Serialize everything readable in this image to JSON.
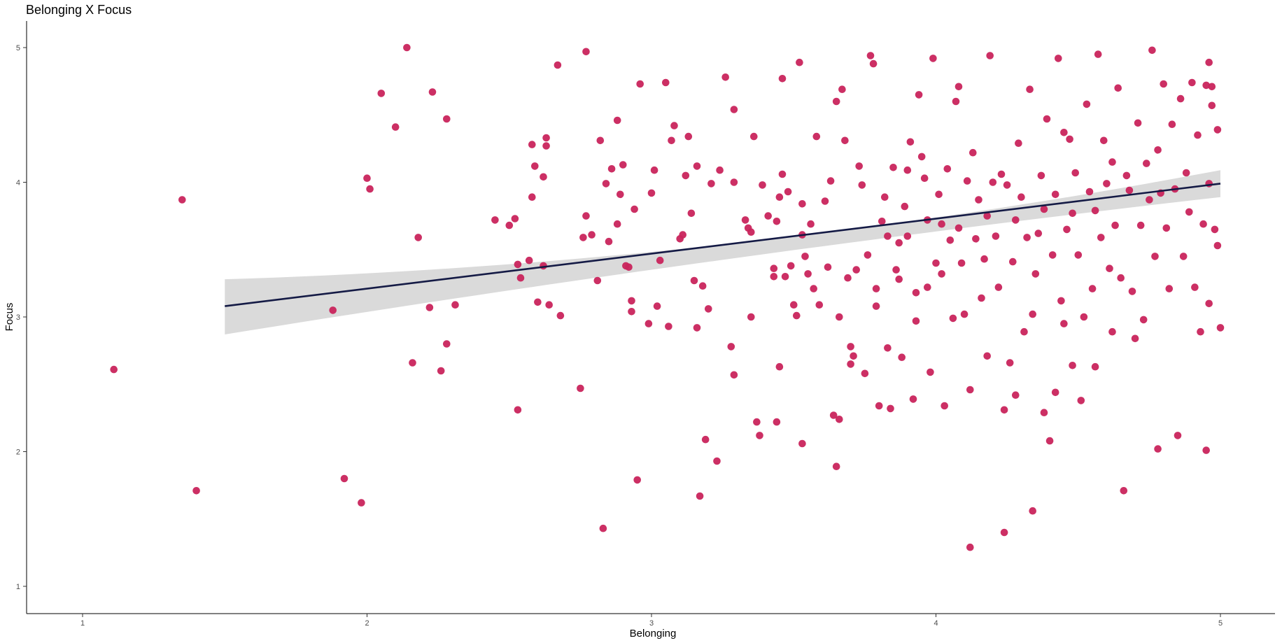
{
  "chart_data": {
    "type": "scatter",
    "title": "Belonging X Focus",
    "xlabel": "Belonging",
    "ylabel": "Focus",
    "xlim": [
      0.8,
      5.2
    ],
    "ylim": [
      0.8,
      5.2
    ],
    "xticks": [
      "1",
      "2",
      "3",
      "4",
      "5"
    ],
    "yticks": [
      "1",
      "2",
      "3",
      "4",
      "5"
    ],
    "grid": false,
    "legend": "none",
    "point_color": "#c9245c",
    "line_color": "#141a45",
    "band_color": "#d6d6d6",
    "regression": {
      "x_start": 1.5,
      "y_start": 3.08,
      "x_end": 5.0,
      "y_end": 3.99,
      "band_start": [
        2.87,
        3.28
      ],
      "band_mid": [
        3.58,
        3.68
      ],
      "band_end": [
        3.89,
        4.09
      ]
    },
    "points": [
      [
        1.11,
        2.61
      ],
      [
        1.35,
        3.87
      ],
      [
        1.4,
        1.71
      ],
      [
        1.88,
        3.05
      ],
      [
        1.92,
        1.8
      ],
      [
        1.98,
        1.62
      ],
      [
        2.0,
        4.03
      ],
      [
        2.01,
        3.95
      ],
      [
        2.05,
        4.66
      ],
      [
        2.1,
        4.41
      ],
      [
        2.14,
        5.0
      ],
      [
        2.16,
        2.66
      ],
      [
        2.18,
        3.59
      ],
      [
        2.22,
        3.07
      ],
      [
        2.23,
        4.67
      ],
      [
        2.26,
        2.6
      ],
      [
        2.28,
        2.8
      ],
      [
        2.28,
        4.47
      ],
      [
        2.31,
        3.09
      ],
      [
        2.45,
        3.72
      ],
      [
        2.5,
        3.68
      ],
      [
        2.52,
        3.73
      ],
      [
        2.53,
        3.39
      ],
      [
        2.54,
        3.29
      ],
      [
        2.53,
        2.31
      ],
      [
        2.57,
        3.42
      ],
      [
        2.58,
        4.28
      ],
      [
        2.58,
        3.89
      ],
      [
        2.59,
        4.12
      ],
      [
        2.6,
        3.11
      ],
      [
        2.62,
        4.04
      ],
      [
        2.62,
        3.38
      ],
      [
        2.63,
        4.33
      ],
      [
        2.63,
        4.27
      ],
      [
        2.64,
        3.09
      ],
      [
        2.67,
        4.87
      ],
      [
        2.68,
        3.01
      ],
      [
        2.75,
        2.47
      ],
      [
        2.76,
        3.59
      ],
      [
        2.77,
        4.97
      ],
      [
        2.77,
        3.75
      ],
      [
        2.79,
        3.61
      ],
      [
        2.81,
        3.27
      ],
      [
        2.82,
        4.31
      ],
      [
        2.83,
        1.43
      ],
      [
        2.84,
        3.99
      ],
      [
        2.85,
        3.56
      ],
      [
        2.86,
        4.1
      ],
      [
        2.88,
        3.69
      ],
      [
        2.88,
        4.46
      ],
      [
        2.89,
        3.91
      ],
      [
        2.9,
        4.13
      ],
      [
        2.91,
        3.38
      ],
      [
        2.92,
        3.37
      ],
      [
        2.93,
        3.12
      ],
      [
        2.93,
        3.04
      ],
      [
        2.94,
        3.8
      ],
      [
        2.95,
        1.79
      ],
      [
        2.96,
        4.73
      ],
      [
        2.99,
        2.95
      ],
      [
        3.0,
        3.92
      ],
      [
        3.01,
        4.09
      ],
      [
        3.02,
        3.08
      ],
      [
        3.03,
        3.42
      ],
      [
        3.05,
        4.74
      ],
      [
        3.06,
        2.93
      ],
      [
        3.08,
        4.42
      ],
      [
        3.07,
        4.31
      ],
      [
        3.1,
        3.58
      ],
      [
        3.11,
        3.61
      ],
      [
        3.12,
        4.05
      ],
      [
        3.13,
        4.34
      ],
      [
        3.14,
        3.77
      ],
      [
        3.15,
        3.27
      ],
      [
        3.16,
        2.92
      ],
      [
        3.16,
        4.12
      ],
      [
        3.17,
        1.67
      ],
      [
        3.18,
        3.23
      ],
      [
        3.19,
        2.09
      ],
      [
        3.2,
        3.06
      ],
      [
        3.21,
        3.99
      ],
      [
        3.23,
        1.93
      ],
      [
        3.24,
        4.09
      ],
      [
        3.26,
        4.78
      ],
      [
        3.28,
        2.78
      ],
      [
        3.29,
        2.57
      ],
      [
        3.29,
        4.54
      ],
      [
        3.29,
        4.0
      ],
      [
        3.33,
        3.72
      ],
      [
        3.34,
        3.66
      ],
      [
        3.35,
        3.63
      ],
      [
        3.35,
        3.0
      ],
      [
        3.36,
        4.34
      ],
      [
        3.37,
        2.22
      ],
      [
        3.38,
        2.12
      ],
      [
        3.39,
        3.98
      ],
      [
        3.41,
        3.75
      ],
      [
        3.43,
        3.36
      ],
      [
        3.43,
        3.3
      ],
      [
        3.44,
        2.22
      ],
      [
        3.44,
        3.71
      ],
      [
        3.45,
        3.89
      ],
      [
        3.45,
        2.63
      ],
      [
        3.46,
        4.77
      ],
      [
        3.46,
        4.06
      ],
      [
        3.47,
        3.3
      ],
      [
        3.48,
        3.93
      ],
      [
        3.49,
        3.38
      ],
      [
        3.5,
        3.09
      ],
      [
        3.51,
        3.01
      ],
      [
        3.52,
        4.89
      ],
      [
        3.53,
        2.06
      ],
      [
        3.53,
        3.84
      ],
      [
        3.53,
        3.61
      ],
      [
        3.54,
        3.45
      ],
      [
        3.55,
        3.32
      ],
      [
        3.56,
        3.69
      ],
      [
        3.57,
        3.21
      ],
      [
        3.58,
        4.34
      ],
      [
        3.59,
        3.09
      ],
      [
        3.61,
        3.86
      ],
      [
        3.62,
        3.37
      ],
      [
        3.63,
        4.01
      ],
      [
        3.64,
        2.27
      ],
      [
        3.65,
        4.6
      ],
      [
        3.65,
        1.89
      ],
      [
        3.66,
        2.24
      ],
      [
        3.66,
        3.0
      ],
      [
        3.67,
        4.69
      ],
      [
        3.68,
        4.31
      ],
      [
        3.69,
        3.29
      ],
      [
        3.7,
        2.78
      ],
      [
        3.7,
        2.65
      ],
      [
        3.71,
        2.71
      ],
      [
        3.72,
        3.35
      ],
      [
        3.73,
        4.12
      ],
      [
        3.74,
        3.98
      ],
      [
        3.75,
        2.58
      ],
      [
        3.76,
        3.46
      ],
      [
        3.77,
        4.94
      ],
      [
        3.78,
        4.88
      ],
      [
        3.79,
        3.21
      ],
      [
        3.79,
        3.08
      ],
      [
        3.8,
        2.34
      ],
      [
        3.81,
        3.71
      ],
      [
        3.82,
        3.89
      ],
      [
        3.83,
        3.6
      ],
      [
        3.83,
        2.77
      ],
      [
        3.84,
        2.32
      ],
      [
        3.85,
        4.11
      ],
      [
        3.86,
        3.35
      ],
      [
        3.87,
        3.55
      ],
      [
        3.87,
        3.28
      ],
      [
        3.88,
        2.7
      ],
      [
        3.89,
        3.82
      ],
      [
        3.9,
        4.09
      ],
      [
        3.9,
        3.6
      ],
      [
        3.91,
        4.3
      ],
      [
        3.92,
        2.39
      ],
      [
        3.93,
        3.18
      ],
      [
        3.93,
        2.97
      ],
      [
        3.94,
        4.65
      ],
      [
        3.95,
        4.19
      ],
      [
        3.96,
        4.03
      ],
      [
        3.97,
        3.72
      ],
      [
        3.97,
        3.22
      ],
      [
        3.98,
        2.59
      ],
      [
        3.99,
        4.92
      ],
      [
        4.0,
        3.4
      ],
      [
        4.01,
        3.91
      ],
      [
        4.02,
        3.69
      ],
      [
        4.02,
        3.32
      ],
      [
        4.03,
        2.34
      ],
      [
        4.04,
        4.1
      ],
      [
        4.05,
        3.57
      ],
      [
        4.06,
        2.99
      ],
      [
        4.07,
        4.6
      ],
      [
        4.08,
        4.71
      ],
      [
        4.08,
        3.66
      ],
      [
        4.09,
        3.4
      ],
      [
        4.1,
        3.02
      ],
      [
        4.11,
        4.01
      ],
      [
        4.12,
        1.29
      ],
      [
        4.12,
        2.46
      ],
      [
        4.13,
        4.22
      ],
      [
        4.14,
        3.58
      ],
      [
        4.15,
        3.87
      ],
      [
        4.16,
        3.14
      ],
      [
        4.17,
        3.43
      ],
      [
        4.18,
        2.71
      ],
      [
        4.18,
        3.75
      ],
      [
        4.19,
        4.94
      ],
      [
        4.2,
        4.0
      ],
      [
        4.21,
        3.6
      ],
      [
        4.22,
        3.22
      ],
      [
        4.23,
        4.06
      ],
      [
        4.24,
        1.4
      ],
      [
        4.24,
        2.31
      ],
      [
        4.25,
        3.98
      ],
      [
        4.26,
        2.66
      ],
      [
        4.27,
        3.41
      ],
      [
        4.28,
        2.42
      ],
      [
        4.28,
        3.72
      ],
      [
        4.29,
        4.29
      ],
      [
        4.3,
        3.89
      ],
      [
        4.31,
        2.89
      ],
      [
        4.32,
        3.59
      ],
      [
        4.33,
        4.69
      ],
      [
        4.34,
        3.02
      ],
      [
        4.34,
        1.56
      ],
      [
        4.35,
        3.32
      ],
      [
        4.36,
        3.62
      ],
      [
        4.37,
        4.05
      ],
      [
        4.38,
        2.29
      ],
      [
        4.38,
        3.8
      ],
      [
        4.39,
        4.47
      ],
      [
        4.4,
        2.08
      ],
      [
        4.41,
        3.46
      ],
      [
        4.42,
        2.44
      ],
      [
        4.42,
        3.91
      ],
      [
        4.43,
        4.92
      ],
      [
        4.44,
        3.12
      ],
      [
        4.45,
        4.37
      ],
      [
        4.45,
        2.95
      ],
      [
        4.46,
        3.65
      ],
      [
        4.47,
        4.32
      ],
      [
        4.48,
        2.64
      ],
      [
        4.48,
        3.77
      ],
      [
        4.49,
        4.07
      ],
      [
        4.5,
        3.46
      ],
      [
        4.51,
        2.38
      ],
      [
        4.52,
        3.0
      ],
      [
        4.53,
        4.58
      ],
      [
        4.54,
        3.93
      ],
      [
        4.55,
        3.21
      ],
      [
        4.56,
        2.63
      ],
      [
        4.56,
        3.79
      ],
      [
        4.57,
        4.95
      ],
      [
        4.58,
        3.59
      ],
      [
        4.59,
        4.31
      ],
      [
        4.6,
        3.99
      ],
      [
        4.61,
        3.36
      ],
      [
        4.62,
        2.89
      ],
      [
        4.62,
        4.15
      ],
      [
        4.63,
        3.68
      ],
      [
        4.64,
        4.7
      ],
      [
        4.65,
        3.29
      ],
      [
        4.66,
        1.71
      ],
      [
        4.67,
        4.05
      ],
      [
        4.68,
        3.94
      ],
      [
        4.69,
        3.19
      ],
      [
        4.7,
        2.84
      ],
      [
        4.71,
        4.44
      ],
      [
        4.72,
        3.68
      ],
      [
        4.73,
        2.98
      ],
      [
        4.74,
        4.14
      ],
      [
        4.75,
        3.87
      ],
      [
        4.76,
        4.98
      ],
      [
        4.77,
        3.45
      ],
      [
        4.78,
        4.24
      ],
      [
        4.78,
        2.02
      ],
      [
        4.79,
        3.92
      ],
      [
        4.8,
        4.73
      ],
      [
        4.81,
        3.66
      ],
      [
        4.82,
        3.21
      ],
      [
        4.83,
        4.43
      ],
      [
        4.84,
        3.95
      ],
      [
        4.85,
        2.12
      ],
      [
        4.86,
        4.62
      ],
      [
        4.87,
        3.45
      ],
      [
        4.88,
        4.07
      ],
      [
        4.89,
        3.78
      ],
      [
        4.9,
        4.74
      ],
      [
        4.91,
        3.22
      ],
      [
        4.92,
        4.35
      ],
      [
        4.93,
        2.89
      ],
      [
        4.94,
        3.69
      ],
      [
        4.95,
        4.72
      ],
      [
        4.95,
        2.01
      ],
      [
        4.96,
        3.99
      ],
      [
        4.96,
        3.1
      ],
      [
        4.97,
        4.57
      ],
      [
        4.98,
        3.65
      ],
      [
        4.99,
        4.39
      ],
      [
        5.0,
        2.92
      ],
      [
        4.99,
        3.53
      ],
      [
        4.97,
        4.71
      ],
      [
        4.96,
        4.89
      ]
    ]
  }
}
